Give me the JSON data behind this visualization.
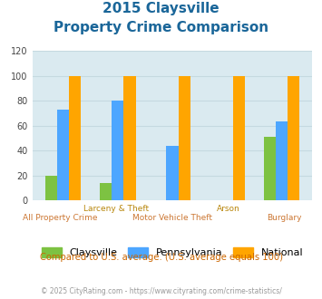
{
  "title_line1": "2015 Claysville",
  "title_line2": "Property Crime Comparison",
  "categories": [
    "All Property Crime",
    "Larceny & Theft",
    "Motor Vehicle Theft",
    "Arson",
    "Burglary"
  ],
  "row1_labels": [
    "",
    "Larceny & Theft",
    "",
    "Arson",
    ""
  ],
  "row2_labels": [
    "All Property Crime",
    "",
    "Motor Vehicle Theft",
    "",
    "Burglary"
  ],
  "claysville": [
    20,
    14,
    0,
    0,
    51
  ],
  "pennsylvania": [
    73,
    80,
    44,
    0,
    63
  ],
  "national": [
    100,
    100,
    100,
    100,
    100
  ],
  "color_claysville": "#7dc242",
  "color_pennsylvania": "#4da6ff",
  "color_national": "#ffa500",
  "color_title": "#1a6699",
  "color_xlabel_row1": "#b8860b",
  "color_xlabel_row2": "#cc7733",
  "color_footer": "#999999",
  "color_compare": "#cc6600",
  "ylim": [
    0,
    120
  ],
  "yticks": [
    0,
    20,
    40,
    60,
    80,
    100,
    120
  ],
  "bar_width": 0.22,
  "grid_color": "#c5d9e0",
  "bg_color": "#daeaf0",
  "footer_text": "© 2025 CityRating.com - https://www.cityrating.com/crime-statistics/",
  "compare_text": "Compared to U.S. average. (U.S. average equals 100)"
}
